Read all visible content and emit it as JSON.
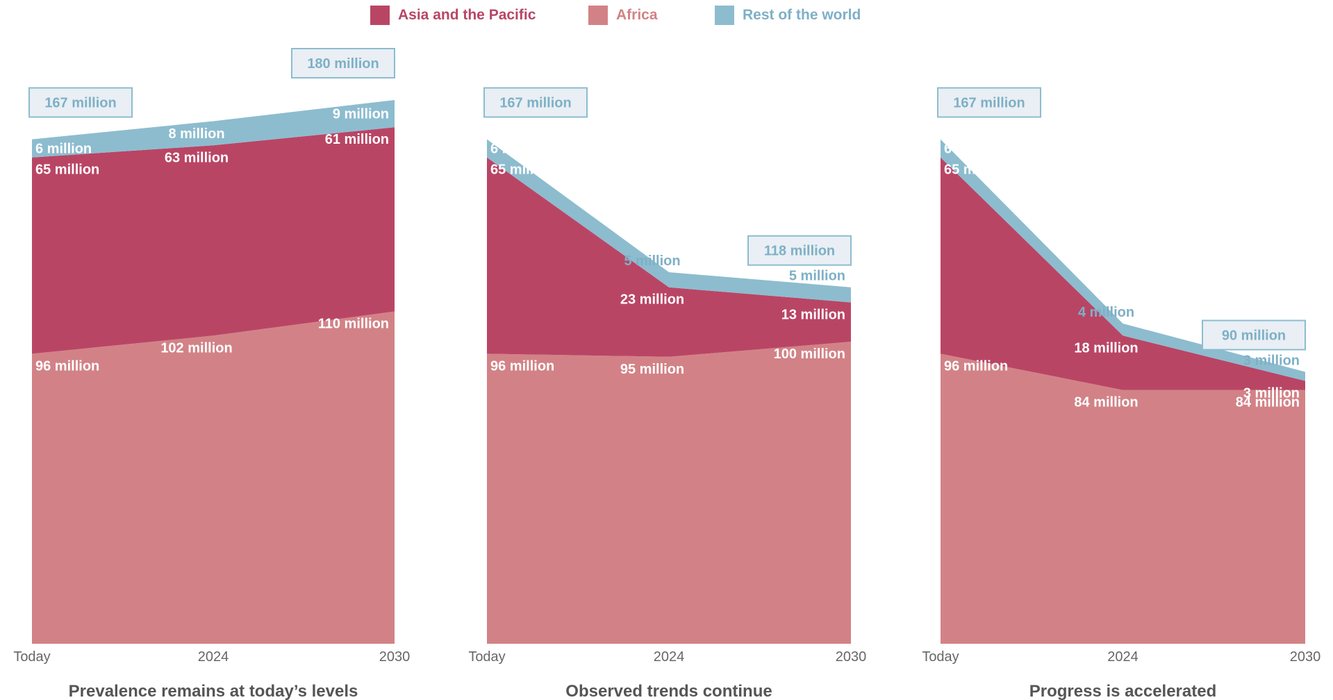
{
  "legend": {
    "items": [
      {
        "label": "Asia and the Pacific",
        "color": "#b94565"
      },
      {
        "label": "Africa",
        "color": "#d28286"
      },
      {
        "label": "Rest of the world",
        "color": "#8dbccf"
      }
    ]
  },
  "colors": {
    "asia": "#b94565",
    "africa": "#d28286",
    "rest": "#8dbccf",
    "box_fill": "#e9eff4",
    "box_stroke": "#8dbccf",
    "box_text": "#7eb0c6",
    "tick_text": "#666666",
    "title_text": "#555555"
  },
  "chart_data": [
    {
      "type": "area",
      "stacked": true,
      "title": "Prevalence remains at today’s levels",
      "x": [
        "Today",
        "2024",
        "2030"
      ],
      "ylim": [
        0,
        190
      ],
      "series": [
        {
          "name": "Africa",
          "values": [
            96,
            102,
            110
          ],
          "labels": [
            "96 million",
            "102 million",
            "110 million"
          ]
        },
        {
          "name": "Asia and the Pacific",
          "values": [
            65,
            63,
            61
          ],
          "labels": [
            "65 million",
            "63 million",
            "61 million"
          ]
        },
        {
          "name": "Rest of the world",
          "values": [
            6,
            8,
            9
          ],
          "labels": [
            "6 million",
            "8 million",
            "9 million"
          ]
        }
      ],
      "totals": [
        {
          "at": "Today",
          "label": "167 million"
        },
        {
          "at": "2030",
          "label": "180 million"
        }
      ]
    },
    {
      "type": "area",
      "stacked": true,
      "title": "Observed trends continue",
      "x": [
        "Today",
        "2024",
        "2030"
      ],
      "ylim": [
        0,
        190
      ],
      "series": [
        {
          "name": "Africa",
          "values": [
            96,
            95,
            100
          ],
          "labels": [
            "96 million",
            "95 million",
            "100 million"
          ]
        },
        {
          "name": "Asia and the Pacific",
          "values": [
            65,
            23,
            13
          ],
          "labels": [
            "65 million",
            "23 million",
            "13 million"
          ]
        },
        {
          "name": "Rest of the world",
          "values": [
            6,
            5,
            5
          ],
          "labels": [
            "6 million",
            "5 million",
            "5 million"
          ]
        }
      ],
      "totals": [
        {
          "at": "Today",
          "label": "167 million"
        },
        {
          "at": "2030",
          "label": "118 million"
        }
      ]
    },
    {
      "type": "area",
      "stacked": true,
      "title": "Progress is accelerated",
      "x": [
        "Today",
        "2024",
        "2030"
      ],
      "ylim": [
        0,
        190
      ],
      "series": [
        {
          "name": "Africa",
          "values": [
            96,
            84,
            84
          ],
          "labels": [
            "96 million",
            "84 million",
            "84 million"
          ]
        },
        {
          "name": "Asia and the Pacific",
          "values": [
            65,
            18,
            3
          ],
          "labels": [
            "65 million",
            "18 million",
            "3 million"
          ]
        },
        {
          "name": "Rest of the world",
          "values": [
            6,
            4,
            3
          ],
          "labels": [
            "6 million",
            "4 million",
            "3 million"
          ]
        }
      ],
      "totals": [
        {
          "at": "Today",
          "label": "167 million"
        },
        {
          "at": "2030",
          "label": "90 million"
        }
      ]
    }
  ]
}
